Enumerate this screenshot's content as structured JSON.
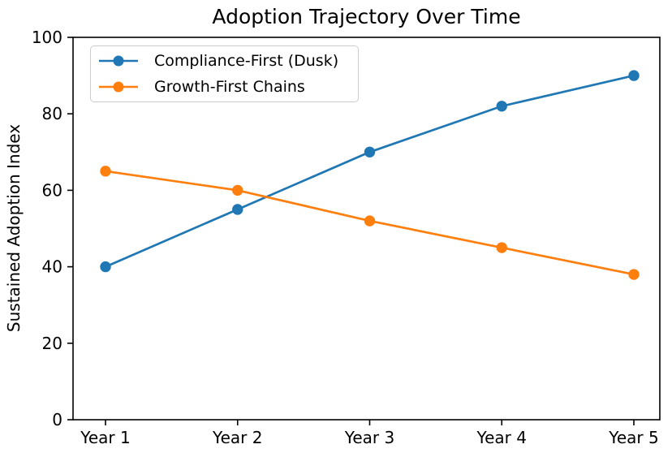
{
  "chart_data": {
    "type": "line",
    "title": "Adoption Trajectory Over Time",
    "xlabel": "",
    "ylabel": "Sustained Adoption Index",
    "x_labels": [
      "Year 1",
      "Year 2",
      "Year 3",
      "Year 4",
      "Year 5"
    ],
    "ylim": [
      0,
      100
    ],
    "yticks": [
      0,
      20,
      40,
      60,
      80,
      100
    ],
    "grid": false,
    "legend_position": "upper left",
    "axis_color": "#000000",
    "background_color": "#ffffff",
    "series": [
      {
        "name": "Compliance-First (Dusk)",
        "color": "#1f77b4",
        "marker": "circle",
        "values": [
          40,
          55,
          70,
          82,
          90
        ]
      },
      {
        "name": "Growth-First Chains",
        "color": "#ff7f0e",
        "marker": "circle",
        "values": [
          65,
          60,
          52,
          45,
          38
        ]
      }
    ]
  }
}
